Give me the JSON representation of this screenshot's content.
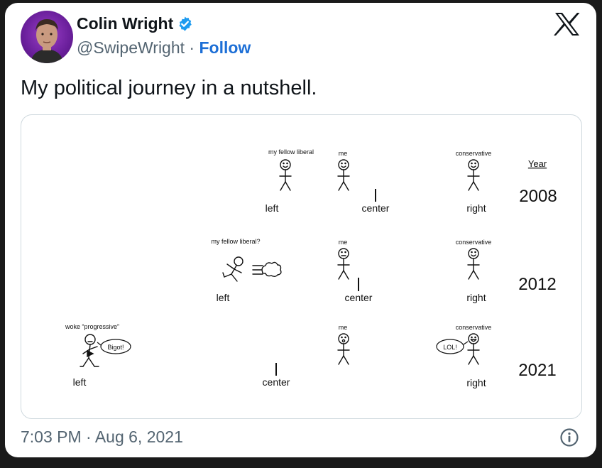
{
  "tweet": {
    "author_name": "Colin Wright",
    "handle": "@SwipeWright",
    "separator": "·",
    "follow_label": "Follow",
    "text": "My political journey in a nutshell.",
    "timestamp": "7:03 PM · Aug 6, 2021"
  },
  "icons": {
    "verified": "verified-badge-icon",
    "logo": "x-logo-icon",
    "info": "info-icon"
  },
  "colors": {
    "accent": "#1d6fd6",
    "verified": "#1d9bf0",
    "axis_left": "#3a62b0",
    "axis_right": "#e0423a"
  },
  "comic": {
    "year_header": "Year",
    "rows": [
      {
        "year": "2008",
        "left_label": "left",
        "center_label": "center",
        "right_label": "right",
        "fig_left_label": "my fellow liberal",
        "me_label": "me",
        "conservative_label": "conservative"
      },
      {
        "year": "2012",
        "left_label": "left",
        "center_label": "center",
        "right_label": "right",
        "fig_left_label": "my fellow liberal?",
        "me_label": "me",
        "conservative_label": "conservative"
      },
      {
        "year": "2021",
        "left_label": "left",
        "center_label": "center",
        "right_label": "right",
        "fig_left_label": "woke “progressive”",
        "me_label": "me",
        "conservative_label": "conservative",
        "bubble_left": "Bigot!",
        "bubble_right": "LOL!"
      }
    ]
  }
}
